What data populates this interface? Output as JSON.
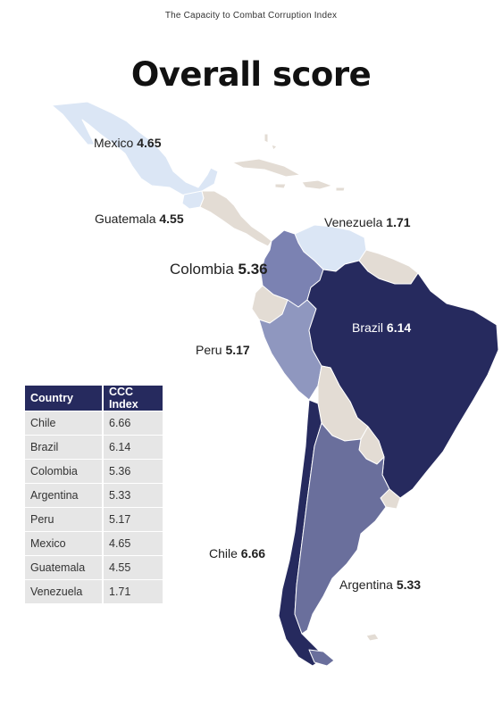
{
  "header": {
    "title": "The Capacity to Combat Corruption Index"
  },
  "map": {
    "title": "Overall score",
    "countries": {
      "mexico": {
        "name": "Mexico",
        "score": "4.65",
        "color": "#dbe6f5"
      },
      "guatemala": {
        "name": "Guatemala",
        "score": "4.55",
        "color": "#dbe6f5"
      },
      "venezuela": {
        "name": "Venezuela",
        "score": "1.71",
        "color": "#dbe6f5"
      },
      "colombia": {
        "name": "Colombia",
        "score": "5.36",
        "color": "#7b82b2"
      },
      "peru": {
        "name": "Peru",
        "score": "5.17",
        "color": "#8f97bf"
      },
      "brazil": {
        "name": "Brazil",
        "score": "6.14",
        "color": "#262a5e"
      },
      "chile": {
        "name": "Chile",
        "score": "6.66",
        "color": "#262a5e"
      },
      "argentina": {
        "name": "Argentina",
        "score": "5.33",
        "color": "#6a6f9c"
      }
    },
    "other_country_color": "#e3dcd4"
  },
  "table": {
    "headers": [
      "Country",
      "CCC Index"
    ],
    "rows": [
      [
        "Chile",
        "6.66"
      ],
      [
        "Brazil",
        "6.14"
      ],
      [
        "Colombia",
        "5.36"
      ],
      [
        "Argentina",
        "5.33"
      ],
      [
        "Peru",
        "5.17"
      ],
      [
        "Mexico",
        "4.65"
      ],
      [
        "Guatemala",
        "4.55"
      ],
      [
        "Venezuela",
        "1.71"
      ]
    ]
  }
}
